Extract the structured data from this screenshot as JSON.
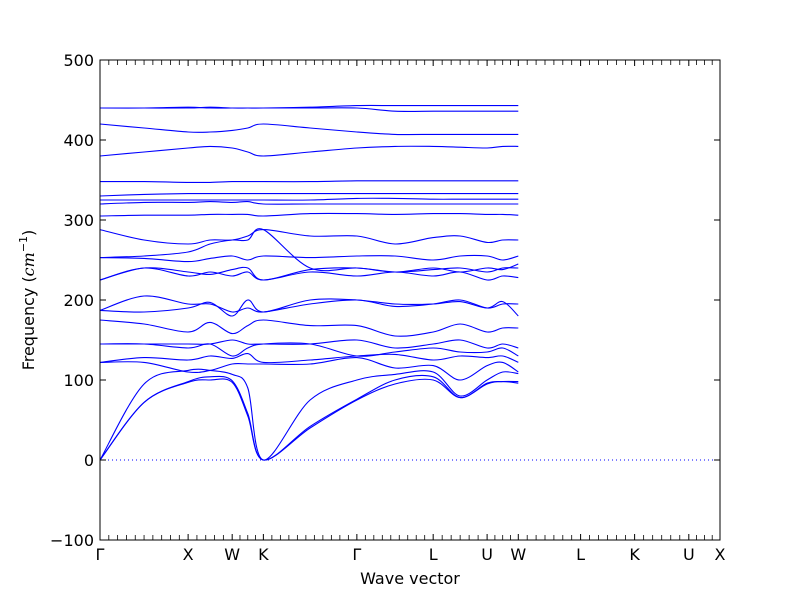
{
  "chart_data": {
    "type": "line",
    "title": "",
    "xlabel": "Wave vector",
    "ylabel_main": "Frequency (",
    "ylabel_unit": "cm",
    "ylabel_exp": "−1",
    "ylabel_close": ")",
    "ylim": [
      -100,
      500
    ],
    "yticks": [
      -100,
      0,
      100,
      200,
      300,
      400,
      500
    ],
    "grid": false,
    "legend": "none",
    "line_color": "#0000ff",
    "zero_line_color": "#0000ff",
    "high_symmetry_points": [
      {
        "label": "Γ",
        "x": 0.0
      },
      {
        "label": "X",
        "x": 1.0
      },
      {
        "label": "W",
        "x": 1.5
      },
      {
        "label": "K",
        "x": 1.854
      },
      {
        "label": "Γ",
        "x": 2.915
      },
      {
        "label": "L",
        "x": 3.781
      },
      {
        "label": "U",
        "x": 4.393
      },
      {
        "label": "W",
        "x": 4.747
      },
      {
        "label": "L",
        "x": 5.454
      },
      {
        "label": "K",
        "x": 6.067
      },
      {
        "label": "U",
        "x": 6.682
      },
      {
        "label": "X",
        "x": 7.036
      }
    ],
    "bands": [
      [
        0,
        72,
        97,
        100,
        97,
        55,
        0,
        40,
        75,
        95,
        100,
        78,
        95,
        98,
        96
      ],
      [
        0,
        72,
        98,
        104,
        99,
        58,
        0,
        42,
        76,
        100,
        104,
        78,
        96,
        98,
        98
      ],
      [
        0,
        95,
        112,
        112,
        107,
        90,
        0,
        75,
        100,
        107,
        110,
        80,
        100,
        110,
        108
      ],
      [
        122,
        122,
        110,
        112,
        120,
        120,
        120,
        120,
        128,
        115,
        118,
        100,
        118,
        122,
        110
      ],
      [
        122,
        128,
        125,
        130,
        127,
        133,
        122,
        125,
        130,
        132,
        125,
        130,
        128,
        130,
        122
      ],
      [
        145,
        145,
        140,
        145,
        130,
        140,
        145,
        145,
        130,
        135,
        140,
        135,
        135,
        140,
        130
      ],
      [
        145,
        145,
        145,
        145,
        150,
        145,
        145,
        145,
        150,
        140,
        145,
        150,
        140,
        145,
        140
      ],
      [
        175,
        170,
        160,
        172,
        158,
        168,
        175,
        168,
        168,
        155,
        160,
        170,
        160,
        165,
        165
      ],
      [
        187,
        205,
        195,
        195,
        185,
        190,
        185,
        195,
        200,
        192,
        195,
        200,
        190,
        195,
        195
      ],
      [
        187,
        185,
        190,
        197,
        180,
        200,
        185,
        200,
        200,
        195,
        195,
        198,
        190,
        198,
        180
      ],
      [
        225,
        240,
        230,
        235,
        230,
        235,
        225,
        235,
        230,
        235,
        230,
        235,
        225,
        230,
        228
      ],
      [
        225,
        240,
        235,
        232,
        238,
        240,
        225,
        238,
        240,
        235,
        238,
        240,
        235,
        240,
        240
      ],
      [
        253,
        252,
        248,
        252,
        255,
        250,
        255,
        253,
        255,
        255,
        250,
        255,
        255,
        250,
        255
      ],
      [
        253,
        255,
        260,
        270,
        275,
        275,
        288,
        240,
        240,
        235,
        240,
        235,
        240,
        238,
        245
      ],
      [
        288,
        275,
        270,
        275,
        275,
        280,
        288,
        280,
        280,
        270,
        278,
        280,
        272,
        275,
        275
      ],
      [
        305,
        306,
        306,
        307,
        307,
        307,
        305,
        308,
        308,
        307,
        308,
        308,
        307,
        307,
        306
      ],
      [
        320,
        322,
        322,
        323,
        322,
        323,
        320,
        320,
        320,
        320,
        320,
        320,
        320,
        320,
        320
      ],
      [
        325,
        325,
        325,
        325,
        325,
        325,
        325,
        325,
        327,
        327,
        326,
        326,
        326,
        326,
        326
      ],
      [
        330,
        332,
        333,
        333,
        333,
        333,
        333,
        333,
        333,
        333,
        333,
        333,
        333,
        333,
        333
      ],
      [
        348,
        348,
        347,
        347,
        348,
        348,
        348,
        348,
        349,
        349,
        349,
        349,
        349,
        349,
        349
      ],
      [
        380,
        385,
        390,
        392,
        390,
        385,
        380,
        385,
        390,
        392,
        392,
        391,
        390,
        392,
        392
      ],
      [
        420,
        415,
        410,
        410,
        412,
        415,
        420,
        415,
        410,
        407,
        407,
        407,
        407,
        407,
        407
      ],
      [
        440,
        440,
        440,
        441,
        440,
        440,
        440,
        441,
        443,
        443,
        443,
        443,
        443,
        443,
        443
      ],
      [
        440,
        440,
        441,
        440,
        440,
        440,
        440,
        440,
        440,
        436,
        436,
        436,
        436,
        436,
        436
      ]
    ]
  }
}
